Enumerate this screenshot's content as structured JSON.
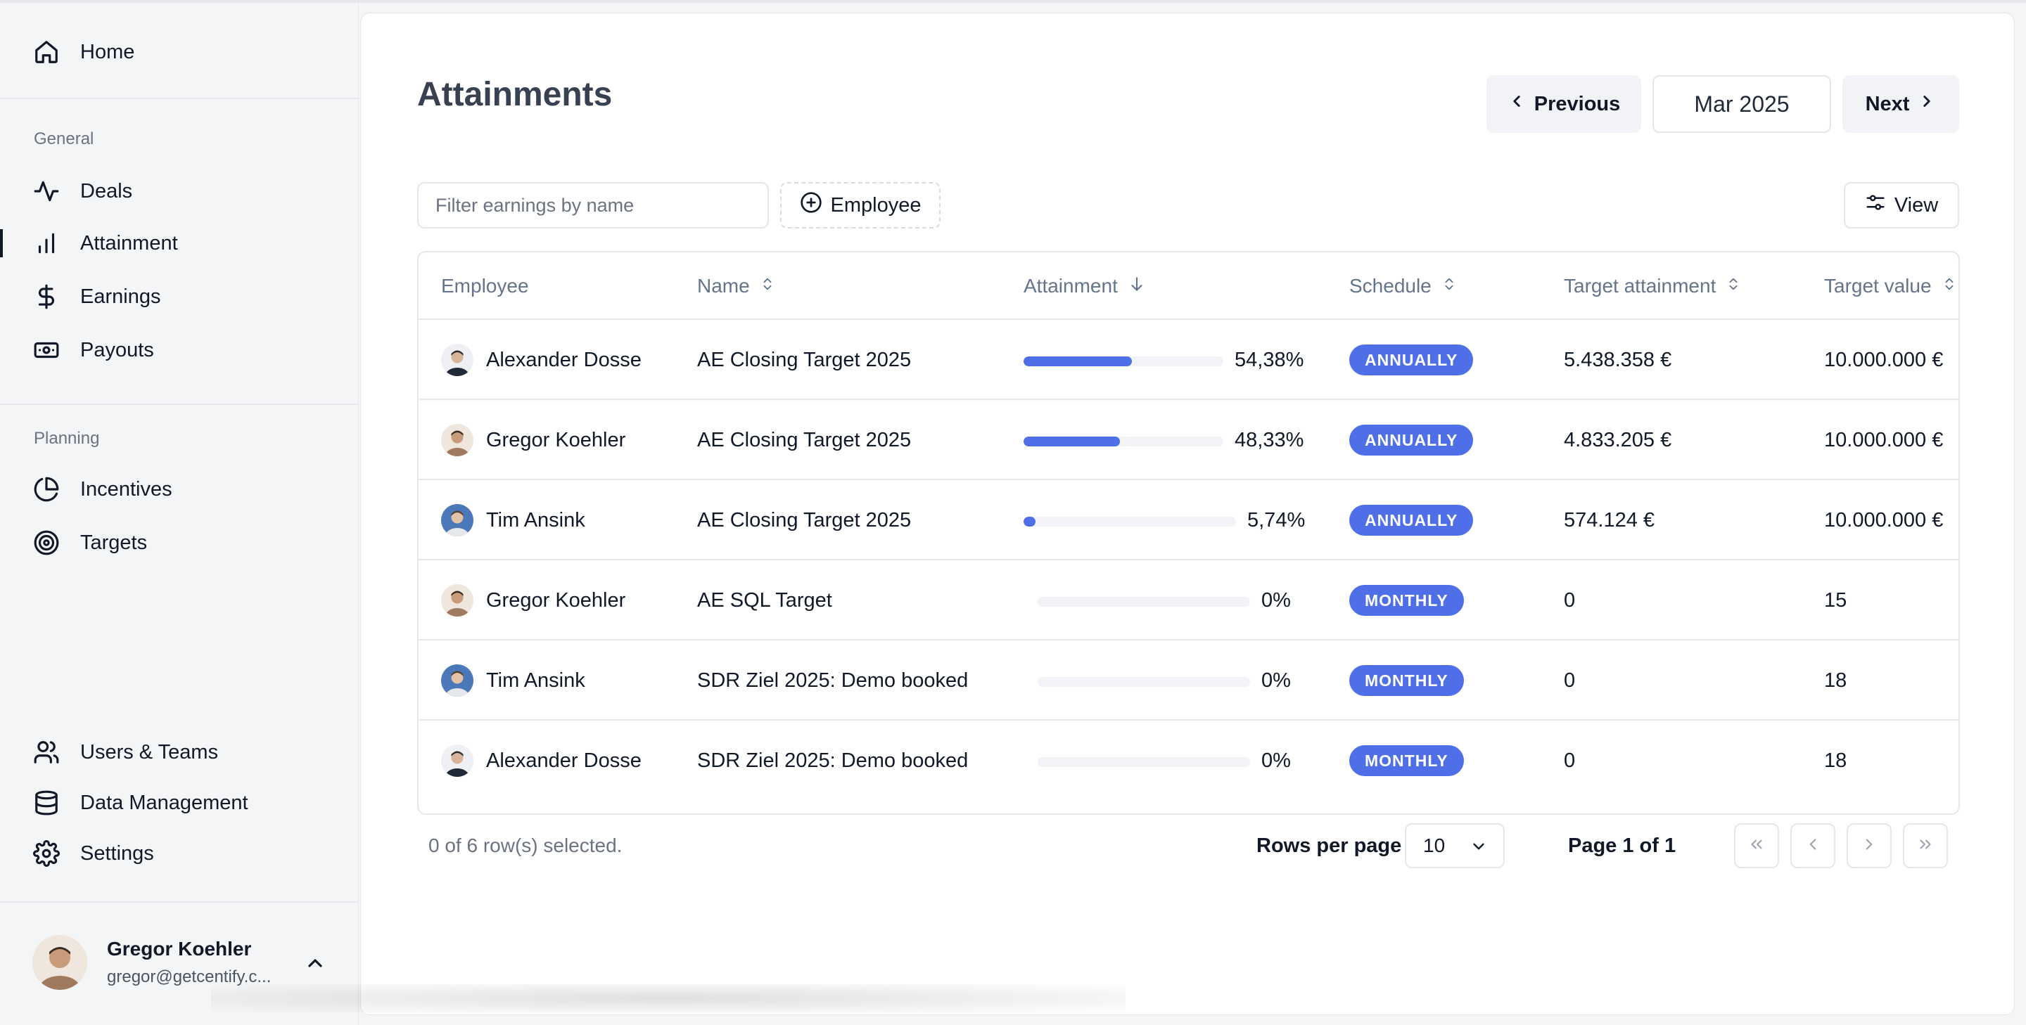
{
  "sidebar": {
    "home": "Home",
    "sections": {
      "general": "General",
      "planning": "Planning"
    },
    "items": {
      "deals": "Deals",
      "attainment": "Attainment",
      "earnings": "Earnings",
      "payouts": "Payouts",
      "incentives": "Incentives",
      "targets": "Targets",
      "users_teams": "Users & Teams",
      "data_management": "Data Management",
      "settings": "Settings"
    },
    "profile": {
      "name": "Gregor Koehler",
      "email": "gregor@getcentify.c..."
    }
  },
  "header": {
    "title": "Attainments",
    "prev_label": "Previous",
    "period": "Mar 2025",
    "next_label": "Next"
  },
  "toolbar": {
    "filter_placeholder": "Filter earnings by name",
    "employee_filter_label": "Employee",
    "view_label": "View"
  },
  "table": {
    "columns": [
      "Employee",
      "Name",
      "Attainment",
      "Schedule",
      "Target attainment",
      "Target value"
    ],
    "rows": [
      {
        "employee": "Alexander Dosse",
        "name": "AE Closing Target 2025",
        "attainment": "54,38%",
        "attainment_fraction": 0.5438,
        "schedule": "ANNUALLY",
        "target_attainment": "5.438.358 €",
        "target_value": "10.000.000 €"
      },
      {
        "employee": "Gregor Koehler",
        "name": "AE Closing Target 2025",
        "attainment": "48,33%",
        "attainment_fraction": 0.4833,
        "schedule": "ANNUALLY",
        "target_attainment": "4.833.205 €",
        "target_value": "10.000.000 €"
      },
      {
        "employee": "Tim Ansink",
        "name": "AE Closing Target 2025",
        "attainment": "5,74%",
        "attainment_fraction": 0.0574,
        "schedule": "ANNUALLY",
        "target_attainment": "574.124 €",
        "target_value": "10.000.000 €"
      },
      {
        "employee": "Gregor Koehler",
        "name": "AE SQL Target",
        "attainment": "0%",
        "attainment_fraction": 0,
        "schedule": "MONTHLY",
        "target_attainment": "0",
        "target_value": "15"
      },
      {
        "employee": "Tim Ansink",
        "name": "SDR Ziel 2025: Demo booked",
        "attainment": "0%",
        "attainment_fraction": 0,
        "schedule": "MONTHLY",
        "target_attainment": "0",
        "target_value": "18"
      },
      {
        "employee": "Alexander Dosse",
        "name": "SDR Ziel 2025: Demo booked",
        "attainment": "0%",
        "attainment_fraction": 0,
        "schedule": "MONTHLY",
        "target_attainment": "0",
        "target_value": "18"
      }
    ]
  },
  "footer": {
    "selection_text": "0 of 6 row(s) selected.",
    "rows_per_page_label": "Rows per page",
    "rows_per_page_value": "10",
    "page_info": "Page 1 of 1"
  },
  "colors": {
    "accent": "#4e6fe8",
    "track": "#f1f3f6"
  }
}
